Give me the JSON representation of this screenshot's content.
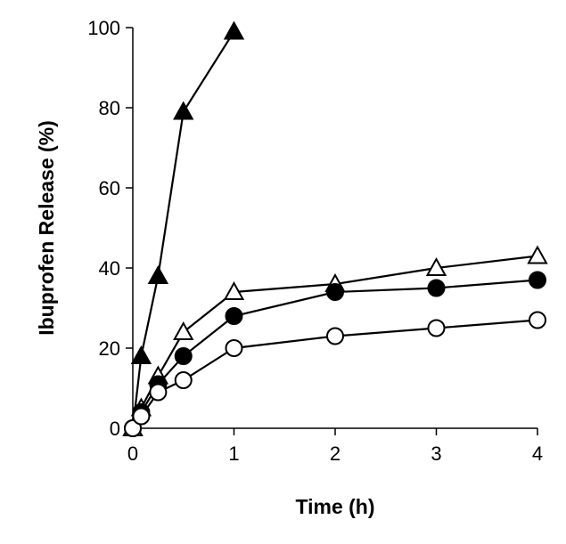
{
  "chart_data": {
    "type": "line",
    "title": "",
    "xlabel": "Time (h)",
    "ylabel": "Ibuprofen Release (%)",
    "xlim": [
      0,
      4
    ],
    "ylim": [
      0,
      100
    ],
    "xticks": [
      "0",
      "1",
      "2",
      "3",
      "4"
    ],
    "yticks": [
      "0",
      "20",
      "40",
      "60",
      "80",
      "100"
    ],
    "grid": false,
    "series": [
      {
        "marker": "filled-triangle",
        "x": [
          0,
          0.083,
          0.25,
          0.5,
          1
        ],
        "y": [
          0,
          18,
          38,
          79,
          99
        ]
      },
      {
        "marker": "open-triangle",
        "x": [
          0,
          0.083,
          0.25,
          0.5,
          1,
          2,
          3,
          4
        ],
        "y": [
          0,
          5,
          13,
          24,
          34,
          36,
          40,
          43
        ]
      },
      {
        "marker": "filled-circle",
        "x": [
          0,
          0.083,
          0.25,
          0.5,
          1,
          2,
          3,
          4
        ],
        "y": [
          0,
          4,
          11,
          18,
          28,
          34,
          35,
          37
        ]
      },
      {
        "marker": "open-circle",
        "x": [
          0,
          0.083,
          0.25,
          0.5,
          1,
          2,
          3,
          4
        ],
        "y": [
          0,
          3,
          9,
          12,
          20,
          23,
          25,
          27
        ]
      }
    ],
    "colors": {
      "line": "#000000",
      "background": "#ffffff"
    }
  }
}
